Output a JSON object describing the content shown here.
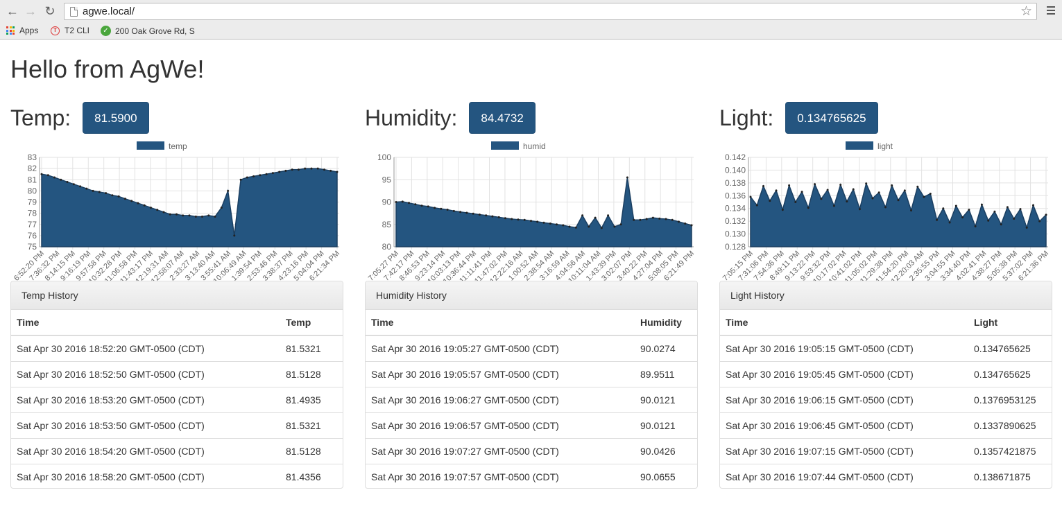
{
  "browser": {
    "url": "agwe.local/",
    "bookmarks": [
      {
        "label": "Apps",
        "icon": "apps-grid-icon"
      },
      {
        "label": "T2 CLI",
        "icon": "t2-icon"
      },
      {
        "label": "200 Oak Grove Rd, S",
        "icon": "leaf-icon"
      }
    ]
  },
  "page": {
    "title": "Hello from AgWe!"
  },
  "panels": [
    {
      "label": "Temp:",
      "value": "81.5900",
      "legend": "temp",
      "history_title": "Temp History",
      "col_time": "Time",
      "col_value": "Temp",
      "rows": [
        {
          "time": "Sat Apr 30 2016 18:52:20 GMT-0500 (CDT)",
          "value": "81.5321"
        },
        {
          "time": "Sat Apr 30 2016 18:52:50 GMT-0500 (CDT)",
          "value": "81.5128"
        },
        {
          "time": "Sat Apr 30 2016 18:53:20 GMT-0500 (CDT)",
          "value": "81.4935"
        },
        {
          "time": "Sat Apr 30 2016 18:53:50 GMT-0500 (CDT)",
          "value": "81.5321"
        },
        {
          "time": "Sat Apr 30 2016 18:54:20 GMT-0500 (CDT)",
          "value": "81.5128"
        },
        {
          "time": "Sat Apr 30 2016 18:58:20 GMT-0500 (CDT)",
          "value": "81.4356"
        }
      ]
    },
    {
      "label": "Humidity:",
      "value": "84.4732",
      "legend": "humid",
      "history_title": "Humidity History",
      "col_time": "Time",
      "col_value": "Humidity",
      "rows": [
        {
          "time": "Sat Apr 30 2016 19:05:27 GMT-0500 (CDT)",
          "value": "90.0274"
        },
        {
          "time": "Sat Apr 30 2016 19:05:57 GMT-0500 (CDT)",
          "value": "89.9511"
        },
        {
          "time": "Sat Apr 30 2016 19:06:27 GMT-0500 (CDT)",
          "value": "90.0121"
        },
        {
          "time": "Sat Apr 30 2016 19:06:57 GMT-0500 (CDT)",
          "value": "90.0121"
        },
        {
          "time": "Sat Apr 30 2016 19:07:27 GMT-0500 (CDT)",
          "value": "90.0426"
        },
        {
          "time": "Sat Apr 30 2016 19:07:57 GMT-0500 (CDT)",
          "value": "90.0655"
        }
      ]
    },
    {
      "label": "Light:",
      "value": "0.134765625",
      "legend": "light",
      "history_title": "Light History",
      "col_time": "Time",
      "col_value": "Light",
      "rows": [
        {
          "time": "Sat Apr 30 2016 19:05:15 GMT-0500 (CDT)",
          "value": "0.134765625"
        },
        {
          "time": "Sat Apr 30 2016 19:05:45 GMT-0500 (CDT)",
          "value": "0.134765625"
        },
        {
          "time": "Sat Apr 30 2016 19:06:15 GMT-0500 (CDT)",
          "value": "0.1376953125"
        },
        {
          "time": "Sat Apr 30 2016 19:06:45 GMT-0500 (CDT)",
          "value": "0.1337890625"
        },
        {
          "time": "Sat Apr 30 2016 19:07:15 GMT-0500 (CDT)",
          "value": "0.1357421875"
        },
        {
          "time": "Sat Apr 30 2016 19:07:44 GMT-0500 (CDT)",
          "value": "0.138671875"
        }
      ]
    }
  ],
  "colors": {
    "accent": "#245580",
    "fill": "#245580",
    "grid": "#e2e2e2"
  },
  "chart_data": [
    {
      "type": "area",
      "series": [
        {
          "name": "temp",
          "values": [
            81.5,
            81.4,
            81.2,
            81.0,
            80.8,
            80.6,
            80.4,
            80.2,
            80.0,
            79.9,
            79.8,
            79.6,
            79.5,
            79.3,
            79.1,
            78.9,
            78.7,
            78.5,
            78.3,
            78.1,
            77.9,
            77.9,
            77.8,
            77.8,
            77.7,
            77.7,
            77.8,
            77.7,
            78.5,
            80.0,
            76.0,
            81.0,
            81.2,
            81.3,
            81.4,
            81.5,
            81.6,
            81.7,
            81.8,
            81.9,
            81.9,
            82.0,
            82.0,
            82.0,
            81.9,
            81.8,
            81.7
          ]
        }
      ],
      "ylim": [
        75,
        83
      ],
      "yticks": [
        "83",
        "82",
        "81",
        "80",
        "79",
        "78",
        "77",
        "76",
        "75"
      ],
      "x_tick_labels": [
        "6:52:20 PM",
        "7:36:32 PM",
        "8:14:15 PM",
        "9:16:19 PM",
        "9:57:58 PM",
        "10:32:28 PM",
        "11:06:58 PM",
        "11:43:17 PM",
        "12:19:31 AM",
        "12:58:07 AM",
        "2:33:27 AM",
        "3:13:40 AM",
        "3:55:41 AM",
        "10:06:49 AM",
        "1:39:54 PM",
        "2:53:46 PM",
        "3:38:37 PM",
        "4:23:16 PM",
        "5:04:04 PM",
        "6:21:34 PM"
      ]
    },
    {
      "type": "area",
      "series": [
        {
          "name": "humid",
          "values": [
            90.0,
            90.1,
            89.8,
            89.5,
            89.2,
            89.0,
            88.7,
            88.5,
            88.3,
            88.0,
            87.8,
            87.6,
            87.4,
            87.2,
            87.0,
            86.8,
            86.6,
            86.4,
            86.2,
            86.1,
            86.0,
            85.8,
            85.6,
            85.4,
            85.2,
            85.0,
            84.8,
            84.5,
            84.3,
            87.0,
            84.5,
            86.5,
            84.2,
            87.0,
            84.5,
            85.0,
            95.5,
            86.0,
            86.0,
            86.2,
            86.5,
            86.3,
            86.2,
            86.0,
            85.6,
            85.2,
            84.8
          ]
        }
      ],
      "ylim": [
        80,
        100
      ],
      "yticks": [
        "100",
        "95",
        "90",
        "85",
        "80"
      ],
      "x_tick_labels": [
        "7:05:27 PM",
        "7:42:17 PM",
        "8:46:53 PM",
        "9:23:14 PM",
        "10:03:13 PM",
        "10:36:44 PM",
        "11:11:41 PM",
        "11:47:02 PM",
        "12:22:16 AM",
        "1:00:52 AM",
        "2:38:54 AM",
        "3:16:59 AM",
        "4:04:56 AM",
        "10:11:04 AM",
        "1:43:39 PM",
        "3:02:07 PM",
        "3:40:22 PM",
        "4:27:04 PM",
        "5:08:05 PM",
        "6:21:49 PM"
      ]
    },
    {
      "type": "area",
      "series": [
        {
          "name": "light",
          "values": [
            0.1358,
            0.1345,
            0.1375,
            0.1352,
            0.1368,
            0.1338,
            0.1376,
            0.135,
            0.1366,
            0.1341,
            0.1378,
            0.1355,
            0.1369,
            0.1344,
            0.1377,
            0.1351,
            0.137,
            0.1339,
            0.1379,
            0.1356,
            0.1365,
            0.1342,
            0.1376,
            0.1353,
            0.1368,
            0.1337,
            0.1374,
            0.1358,
            0.1363,
            0.1322,
            0.134,
            0.1318,
            0.1344,
            0.1326,
            0.1338,
            0.1312,
            0.1346,
            0.1321,
            0.1335,
            0.1315,
            0.1342,
            0.1324,
            0.1339,
            0.131,
            0.1345,
            0.132,
            0.133
          ]
        }
      ],
      "ylim": [
        0.128,
        0.142
      ],
      "yticks": [
        "0.142",
        "0.140",
        "0.138",
        "0.136",
        "0.134",
        "0.132",
        "0.130",
        "0.128"
      ],
      "x_tick_labels": [
        "7:05:15 PM",
        "7:31:06 PM",
        "7:54:36 PM",
        "8:49:11 PM",
        "9:13:22 PM",
        "9:53:32 PM",
        "10:17:02 PM",
        "10:41:02 PM",
        "11:05:02 PM",
        "11:29:38 PM",
        "11:54:20 PM",
        "12:20:03 AM",
        "2:35:55 PM",
        "3:04:55 PM",
        "3:34:40 PM",
        "4:02:41 PM",
        "4:38:27 PM",
        "5:05:38 PM",
        "5:37:02 PM",
        "6:21:36 PM"
      ]
    }
  ]
}
